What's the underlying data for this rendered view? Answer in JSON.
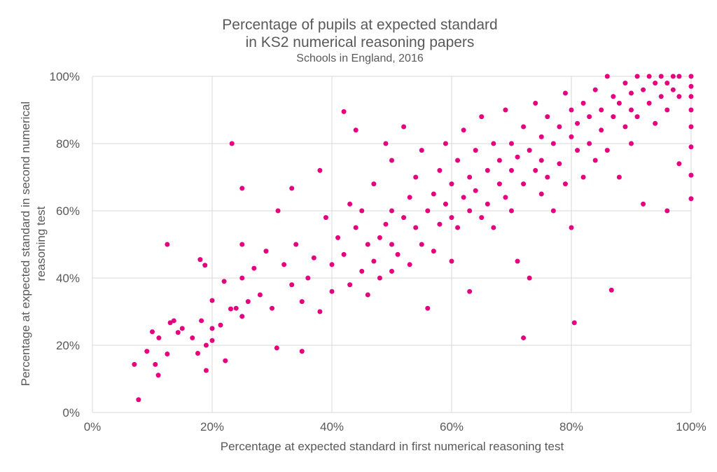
{
  "chart_data": {
    "type": "scatter",
    "title_line1": "Percentage of pupils at expected standard",
    "title_line2": "in KS2 numerical reasoning papers",
    "subtitle": "Schools in England, 2016",
    "xlabel": "Percentage at expected standard in first numerical reasoning test",
    "ylabel_line1": "Percentage at expected standard in second numerical",
    "ylabel_line2": "reasoning test",
    "xlim": [
      0,
      100
    ],
    "ylim": [
      0,
      100
    ],
    "x_ticks": [
      0,
      20,
      40,
      60,
      80,
      100
    ],
    "y_ticks": [
      0,
      20,
      40,
      60,
      80,
      100
    ],
    "x_tick_labels": [
      "0%",
      "20%",
      "40%",
      "60%",
      "80%",
      "100%"
    ],
    "y_tick_labels": [
      "0%",
      "20%",
      "40%",
      "60%",
      "80%",
      "100%"
    ],
    "grid": true,
    "legend": "none",
    "marker_color": "#E6007E",
    "points": [
      [
        7,
        14.3
      ],
      [
        7.7,
        3.8
      ],
      [
        9.1,
        18.2
      ],
      [
        10,
        24
      ],
      [
        10.5,
        14.3
      ],
      [
        11,
        11.1
      ],
      [
        11.1,
        22.2
      ],
      [
        12.5,
        50
      ],
      [
        12.5,
        17.4
      ],
      [
        13,
        26.7
      ],
      [
        13.6,
        27.3
      ],
      [
        14.3,
        23.8
      ],
      [
        15,
        25
      ],
      [
        16.7,
        22.2
      ],
      [
        17.6,
        17.6
      ],
      [
        18,
        45.5
      ],
      [
        18.2,
        27.3
      ],
      [
        18.8,
        43.8
      ],
      [
        19,
        12.5
      ],
      [
        19,
        20
      ],
      [
        20,
        21.4
      ],
      [
        20,
        33.3
      ],
      [
        20,
        25
      ],
      [
        21.4,
        26
      ],
      [
        22,
        39
      ],
      [
        22.2,
        15.4
      ],
      [
        23.1,
        30.8
      ],
      [
        23.3,
        80
      ],
      [
        24,
        31
      ],
      [
        25,
        66.7
      ],
      [
        25,
        50
      ],
      [
        25,
        40
      ],
      [
        25,
        28.6
      ],
      [
        26,
        33
      ],
      [
        27,
        42.9
      ],
      [
        28,
        35
      ],
      [
        29,
        48
      ],
      [
        30,
        31
      ],
      [
        30.8,
        19.2
      ],
      [
        31,
        60
      ],
      [
        32,
        44
      ],
      [
        33.3,
        66.7
      ],
      [
        33.3,
        38
      ],
      [
        34,
        50
      ],
      [
        35,
        18.2
      ],
      [
        35,
        33
      ],
      [
        36,
        40
      ],
      [
        37,
        46
      ],
      [
        38,
        72
      ],
      [
        38,
        30
      ],
      [
        39,
        58
      ],
      [
        40,
        44
      ],
      [
        40,
        36
      ],
      [
        41,
        52
      ],
      [
        42,
        89.5
      ],
      [
        42,
        47
      ],
      [
        43,
        38
      ],
      [
        43,
        62
      ],
      [
        44,
        55
      ],
      [
        44,
        84
      ],
      [
        45,
        42
      ],
      [
        45,
        60
      ],
      [
        46,
        50
      ],
      [
        46,
        35
      ],
      [
        47,
        68
      ],
      [
        47,
        45
      ],
      [
        48,
        52
      ],
      [
        48,
        40
      ],
      [
        49,
        80
      ],
      [
        49,
        56
      ],
      [
        50,
        50
      ],
      [
        50,
        42
      ],
      [
        50,
        60
      ],
      [
        50,
        75
      ],
      [
        51,
        47
      ],
      [
        52,
        85
      ],
      [
        52,
        58
      ],
      [
        53,
        44
      ],
      [
        53,
        64
      ],
      [
        54,
        55
      ],
      [
        54,
        70
      ],
      [
        55,
        50
      ],
      [
        55,
        78
      ],
      [
        56,
        31
      ],
      [
        56,
        60
      ],
      [
        57,
        65
      ],
      [
        57,
        48
      ],
      [
        58,
        72
      ],
      [
        58,
        56
      ],
      [
        59,
        80
      ],
      [
        59,
        62
      ],
      [
        60,
        58
      ],
      [
        60,
        68
      ],
      [
        60,
        45
      ],
      [
        61,
        75
      ],
      [
        61,
        55
      ],
      [
        62,
        84
      ],
      [
        62,
        64
      ],
      [
        63,
        60
      ],
      [
        63,
        70
      ],
      [
        63,
        36
      ],
      [
        64,
        78
      ],
      [
        64,
        66
      ],
      [
        65,
        58
      ],
      [
        65,
        88
      ],
      [
        66,
        72
      ],
      [
        66,
        62
      ],
      [
        67,
        80
      ],
      [
        67,
        55
      ],
      [
        68,
        68
      ],
      [
        68,
        75
      ],
      [
        69,
        90
      ],
      [
        69,
        64
      ],
      [
        70,
        72
      ],
      [
        70,
        60
      ],
      [
        70,
        80
      ],
      [
        71,
        76
      ],
      [
        71,
        45
      ],
      [
        72,
        22.2
      ],
      [
        72,
        85
      ],
      [
        72,
        68
      ],
      [
        73,
        78
      ],
      [
        73,
        40
      ],
      [
        74,
        92
      ],
      [
        74,
        72
      ],
      [
        75,
        82
      ],
      [
        75,
        65
      ],
      [
        75,
        75
      ],
      [
        76,
        88
      ],
      [
        76,
        70
      ],
      [
        77,
        80
      ],
      [
        77,
        60
      ],
      [
        78,
        85
      ],
      [
        78,
        74
      ],
      [
        79,
        95
      ],
      [
        79,
        68
      ],
      [
        80,
        82
      ],
      [
        80,
        55
      ],
      [
        80,
        90
      ],
      [
        80.5,
        26.7
      ],
      [
        81,
        78
      ],
      [
        81,
        86
      ],
      [
        82,
        92
      ],
      [
        82,
        70
      ],
      [
        83,
        88
      ],
      [
        83,
        80
      ],
      [
        84,
        96
      ],
      [
        84,
        75
      ],
      [
        85,
        90
      ],
      [
        85,
        84
      ],
      [
        86,
        100
      ],
      [
        86.7,
        36.4
      ],
      [
        86,
        78
      ],
      [
        87,
        94
      ],
      [
        87,
        88
      ],
      [
        88,
        92
      ],
      [
        88,
        70
      ],
      [
        89,
        98
      ],
      [
        89,
        85
      ],
      [
        90,
        95
      ],
      [
        90,
        90
      ],
      [
        90,
        80
      ],
      [
        91,
        100
      ],
      [
        91,
        88
      ],
      [
        92,
        96
      ],
      [
        92,
        62
      ],
      [
        93,
        100
      ],
      [
        93,
        92
      ],
      [
        94,
        98
      ],
      [
        94,
        86
      ],
      [
        95,
        100
      ],
      [
        95,
        94
      ],
      [
        96,
        60
      ],
      [
        96,
        98
      ],
      [
        96,
        90
      ],
      [
        97,
        100
      ],
      [
        97,
        96
      ],
      [
        98,
        100
      ],
      [
        98,
        94
      ],
      [
        98,
        74
      ],
      [
        100,
        100
      ],
      [
        100,
        97
      ],
      [
        100,
        94
      ],
      [
        100,
        90
      ],
      [
        100,
        85
      ],
      [
        100,
        79
      ],
      [
        100,
        70.6
      ],
      [
        100,
        63.6
      ]
    ]
  }
}
